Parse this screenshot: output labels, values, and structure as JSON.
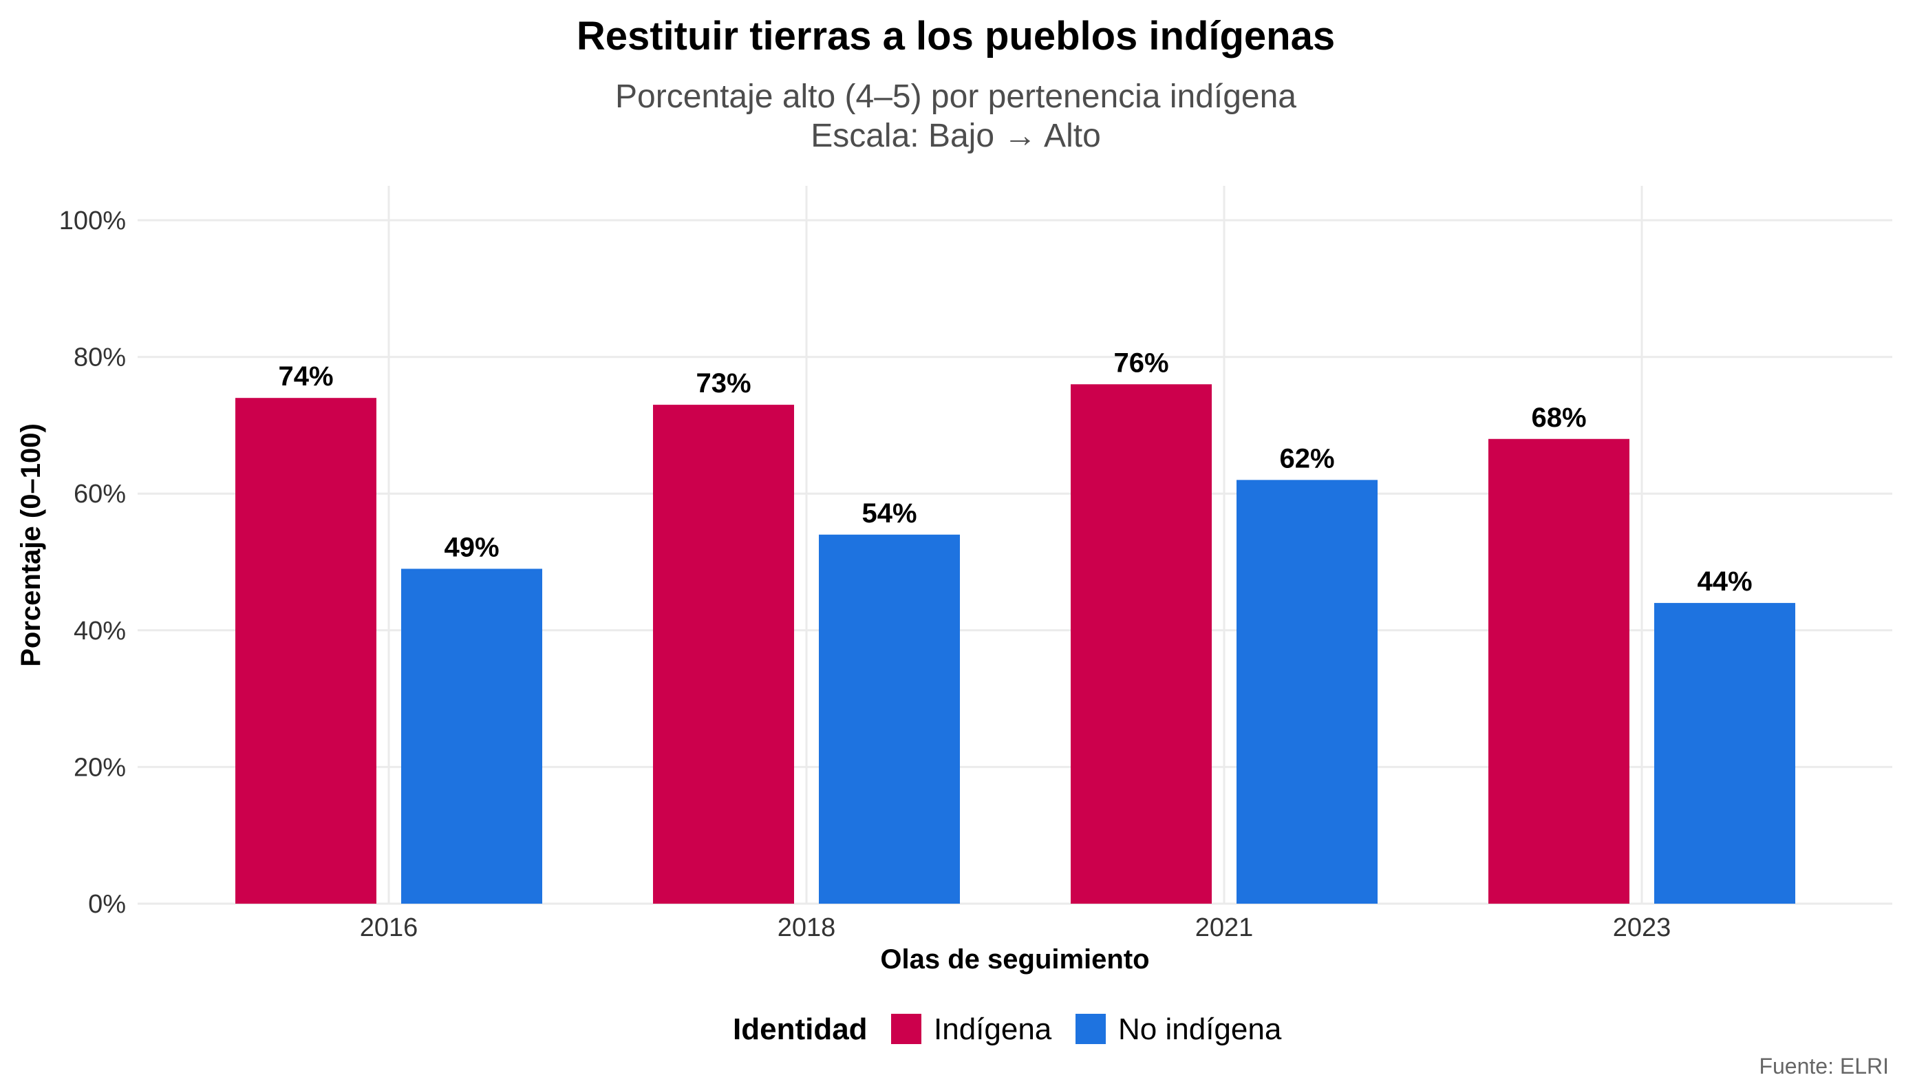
{
  "chart_data": {
    "type": "bar",
    "title": "Restituir tierras a los pueblos indígenas",
    "subtitle_lines": [
      "Porcentaje alto (4–5) por pertenencia indígena",
      "Escala: Bajo → Alto"
    ],
    "xlabel": "Olas de seguimiento",
    "ylabel": "Porcentaje (0–100)",
    "categories": [
      "2016",
      "2018",
      "2021",
      "2023"
    ],
    "series": [
      {
        "name": "Indígena",
        "color": "#cc004c",
        "values": [
          74,
          73,
          76,
          68
        ],
        "labels": [
          "74%",
          "73%",
          "76%",
          "68%"
        ]
      },
      {
        "name": "No indígena",
        "color": "#1e73e0",
        "values": [
          49,
          54,
          62,
          44
        ],
        "labels": [
          "49%",
          "54%",
          "62%",
          "44%"
        ]
      }
    ],
    "ylim": [
      0,
      100
    ],
    "yticks": [
      0,
      20,
      40,
      60,
      80,
      100
    ],
    "ytick_labels": [
      "0%",
      "20%",
      "40%",
      "60%",
      "80%",
      "100%"
    ],
    "grid": true,
    "legend": {
      "title": "Identidad",
      "placement": "bottom"
    },
    "caption": "Fuente: ELRI"
  }
}
